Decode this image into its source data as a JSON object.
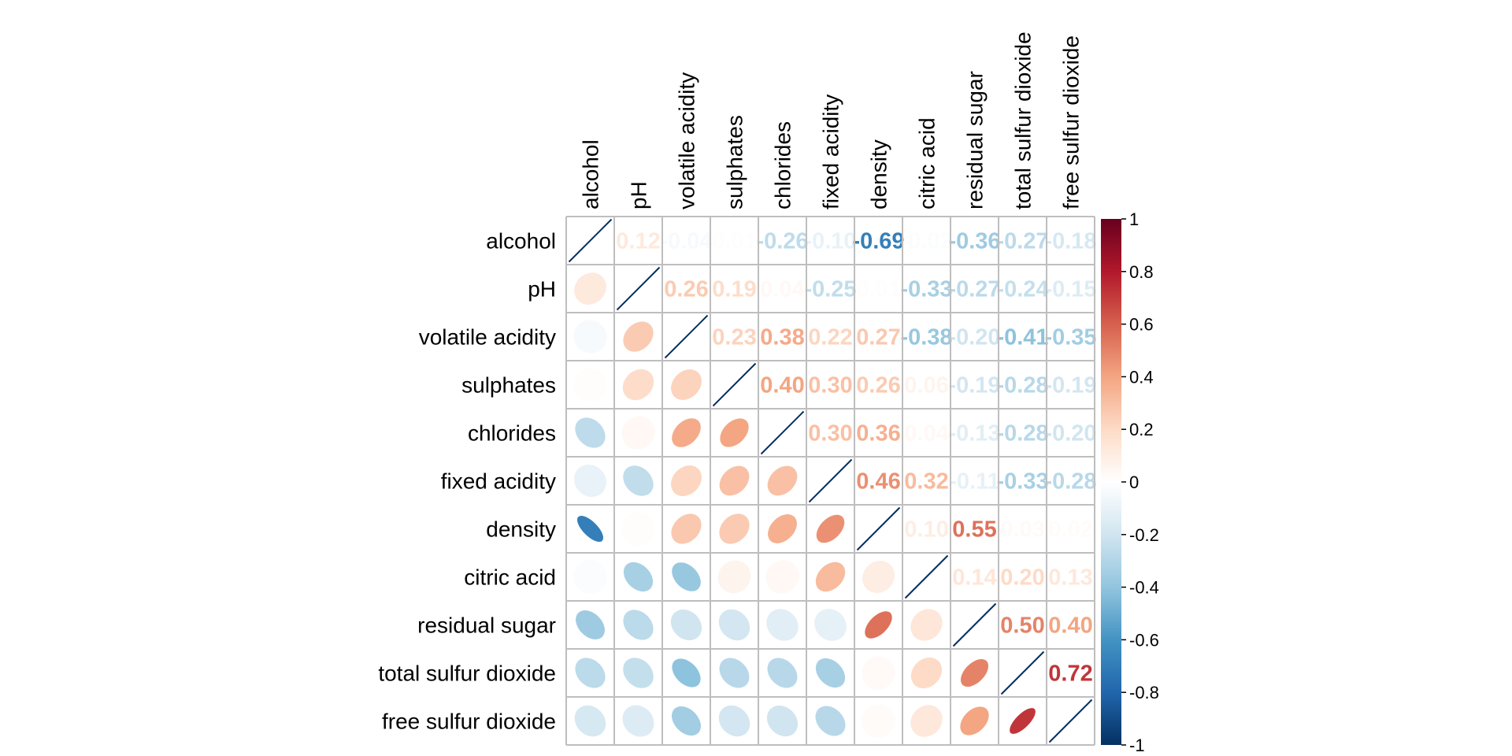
{
  "chart_data": {
    "type": "heatmap",
    "variables": [
      "alcohol",
      "pH",
      "volatile acidity",
      "sulphates",
      "chlorides",
      "fixed acidity",
      "density",
      "citric acid",
      "residual sugar",
      "total sulfur dioxide",
      "free sulfur dioxide"
    ],
    "matrix": [
      [
        1,
        0.12,
        -0.04,
        0.01,
        -0.26,
        -0.1,
        -0.69,
        -0.02,
        -0.36,
        -0.27,
        -0.18
      ],
      [
        0.12,
        1,
        0.26,
        0.19,
        0.04,
        -0.25,
        0.01,
        -0.33,
        -0.27,
        -0.24,
        -0.15
      ],
      [
        -0.04,
        0.26,
        1,
        0.23,
        0.38,
        0.22,
        0.27,
        -0.38,
        -0.2,
        -0.41,
        -0.35
      ],
      [
        0.01,
        0.19,
        0.23,
        1,
        0.4,
        0.3,
        0.26,
        0.06,
        -0.19,
        -0.28,
        -0.19
      ],
      [
        -0.26,
        0.04,
        0.38,
        0.4,
        1,
        0.3,
        0.36,
        0.04,
        -0.13,
        -0.28,
        -0.2
      ],
      [
        -0.1,
        -0.25,
        0.22,
        0.3,
        0.3,
        1,
        0.46,
        0.32,
        -0.11,
        -0.33,
        -0.28
      ],
      [
        -0.69,
        0.01,
        0.27,
        0.26,
        0.36,
        0.46,
        1,
        0.1,
        0.55,
        0.03,
        0.02
      ],
      [
        -0.02,
        -0.33,
        -0.38,
        0.06,
        0.04,
        0.32,
        0.1,
        1,
        0.14,
        0.2,
        0.13
      ],
      [
        -0.36,
        -0.27,
        -0.2,
        -0.19,
        -0.13,
        -0.11,
        0.55,
        0.14,
        1,
        0.5,
        0.4
      ],
      [
        -0.27,
        -0.24,
        -0.41,
        -0.28,
        -0.28,
        -0.33,
        0.03,
        0.2,
        0.5,
        1,
        0.72
      ],
      [
        -0.18,
        -0.15,
        -0.35,
        -0.19,
        -0.2,
        -0.28,
        0.02,
        0.13,
        0.4,
        0.72,
        1
      ]
    ],
    "upper_display": "number",
    "lower_display": "ellipse",
    "diagonal_display": "line",
    "color_scale": {
      "range": [
        -1,
        1
      ],
      "ticks": [
        "1",
        "0.8",
        "0.6",
        "0.4",
        "0.2",
        "0",
        "-0.2",
        "-0.4",
        "-0.6",
        "-0.8",
        "-1"
      ],
      "colors": [
        "#67001F",
        "#B2182B",
        "#D6604D",
        "#F4A582",
        "#FDDBC7",
        "#FFFFFF",
        "#D1E5F0",
        "#92C5DE",
        "#4393C3",
        "#2166AC",
        "#053061"
      ]
    },
    "grid": true,
    "legend": "right"
  }
}
